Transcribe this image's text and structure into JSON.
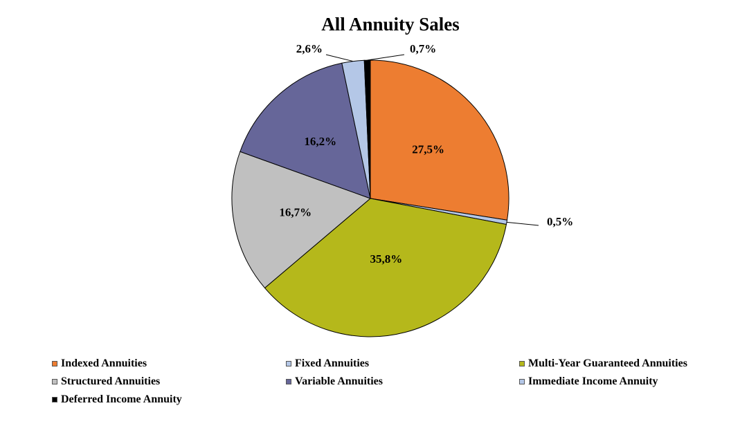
{
  "chart_data": {
    "type": "pie",
    "title": "All Annuity Sales",
    "slices": [
      {
        "name": "Indexed Annuities",
        "value": 27.5,
        "label": "27,5%",
        "color": "#ED7D31"
      },
      {
        "name": "Fixed Annuities",
        "value": 0.5,
        "label": "0,5%",
        "color": "#B4C7E7"
      },
      {
        "name": "Multi-Year Guaranteed Annuities",
        "value": 35.8,
        "label": "35,8%",
        "color": "#B5B81B"
      },
      {
        "name": "Structured Annuities",
        "value": 16.7,
        "label": "16,7%",
        "color": "#C0C0C0"
      },
      {
        "name": "Variable Annuities",
        "value": 16.2,
        "label": "16,2%",
        "color": "#666699"
      },
      {
        "name": "Immediate Income Annuity",
        "value": 2.6,
        "label": "2,6%",
        "color": "#B4C7E7"
      },
      {
        "name": "Deferred Income Annuity",
        "value": 0.7,
        "label": "0,7%",
        "color": "#000000"
      }
    ],
    "start": "12 o'clock",
    "direction": "clockwise",
    "legend_position": "bottom"
  }
}
